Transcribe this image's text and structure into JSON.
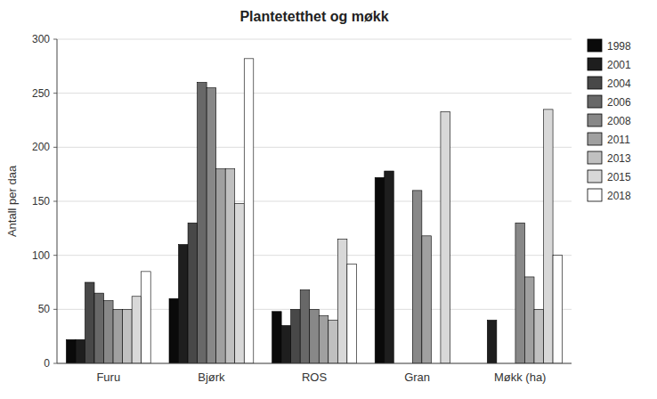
{
  "chart_data": {
    "type": "bar",
    "title": "Plantetetthet og møkk",
    "ylabel": "Antall per daa",
    "categories": [
      "Furu",
      "Bjørk",
      "ROS",
      "Gran",
      "Møkk (ha)"
    ],
    "series": [
      {
        "name": "1998",
        "color": "#0a0a0a",
        "values": [
          22,
          60,
          48,
          172,
          0
        ]
      },
      {
        "name": "2001",
        "color": "#1e1e1e",
        "values": [
          22,
          110,
          35,
          178,
          40
        ]
      },
      {
        "name": "2004",
        "color": "#484848",
        "values": [
          75,
          130,
          50,
          0,
          0
        ]
      },
      {
        "name": "2006",
        "color": "#686868",
        "values": [
          65,
          260,
          68,
          0,
          0
        ]
      },
      {
        "name": "2008",
        "color": "#888888",
        "values": [
          58,
          255,
          50,
          160,
          130
        ]
      },
      {
        "name": "2011",
        "color": "#a0a0a0",
        "values": [
          50,
          180,
          44,
          118,
          80
        ]
      },
      {
        "name": "2013",
        "color": "#c0c0c0",
        "values": [
          50,
          180,
          40,
          0,
          50
        ]
      },
      {
        "name": "2015",
        "color": "#d8d8d8",
        "values": [
          62,
          148,
          115,
          233,
          235
        ]
      },
      {
        "name": "2018",
        "color": "#ffffff",
        "values": [
          85,
          282,
          92,
          0,
          100
        ]
      }
    ],
    "ylim": [
      0,
      300
    ],
    "yticks": [
      0,
      50,
      100,
      150,
      200,
      250,
      300
    ],
    "grid": true,
    "legend": "right"
  }
}
